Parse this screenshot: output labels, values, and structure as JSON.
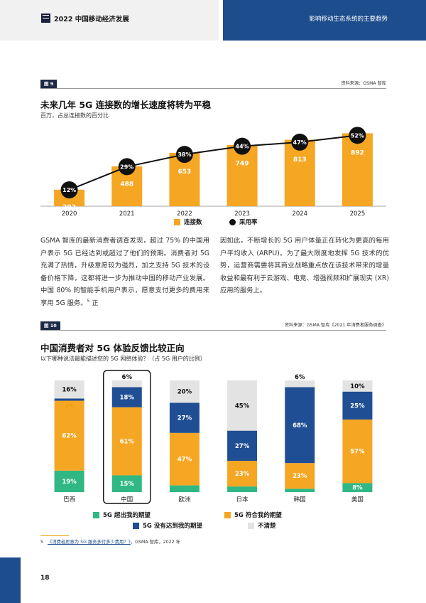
{
  "header": {
    "doc_title": "2022 中国移动经济发展",
    "section_title": "影响移动生态系统的主要趋势"
  },
  "figure9": {
    "label": "图 9",
    "source": "资料来源：GSMA 智库",
    "title": "未来几年 5G 连接数的增长速度将转为平稳",
    "subtitle": "百万，占总连接数的百分比",
    "legend_connections": "连接数",
    "legend_adoption": "采用率",
    "chart_data": {
      "type": "bar",
      "categories": [
        "2020",
        "2021",
        "2022",
        "2023",
        "2024",
        "2025"
      ],
      "series": [
        {
          "name": "连接数",
          "values": [
            202,
            488,
            653,
            749,
            813,
            892
          ],
          "color": "#f5a623"
        },
        {
          "name": "采用率",
          "values": [
            12,
            29,
            38,
            44,
            47,
            52
          ],
          "unit": "%",
          "color": "#111111",
          "type": "line"
        }
      ],
      "ylim": [
        0,
        1000
      ],
      "adoption_ylim": [
        0,
        60
      ],
      "grid": false,
      "legend": "bottom"
    }
  },
  "body": {
    "left": "GSMA 智库的最新消费者调查发现，超过 75% 的中国用户表示 5G 已经达到或超过了他们的预期。消费者对 5G 充满了热情，升级意愿较为强烈，加之支持 5G 技术的设备价格下降，这都将进一步为推动中国的移动产业发展。中国 80% 的智能手机用户表示，愿意支付更多的费用来享用 5G 服务。",
    "left_footnote_ref": "5",
    "left_tail": " 正",
    "right": "因如此，不断增长的 5G 用户体量正在转化为更高的每用户平均收入 (ARPU)。为了最大限度地发挥 5G 技术的优势，运营商需要将其商业战略重点放在该技术带来的增量收益和最有利于云游戏、电竞、增强视频和扩展现实 (XR) 应用的服务上。"
  },
  "figure10": {
    "label": "图 10",
    "source": "资料来源：GSMA 智库《2021 年消费者服务调查》",
    "title": "中国消费者对 5G 体验反馈比较正向",
    "subtitle": "以下哪种说法最能描述您的 5G 网络体验？（占 5G 用户的比例）",
    "legend": {
      "exceeded": "5G 超出我的期望",
      "met": "5G 符合我的期望",
      "below": "5G 没有达到我的期望",
      "unsure": "不清楚"
    },
    "chart_data": {
      "type": "bar",
      "stacked": true,
      "categories": [
        "巴西",
        "中国",
        "欧洲",
        "日本",
        "韩国",
        "美国"
      ],
      "highlight": "中国",
      "series": [
        {
          "name": "5G 超出我的期望",
          "values": [
            19,
            15,
            6,
            5,
            3,
            8
          ],
          "color": "#2fb884"
        },
        {
          "name": "5G 符合我的期望",
          "values": [
            62,
            61,
            47,
            23,
            23,
            57
          ],
          "color": "#f5a623"
        },
        {
          "name": "5G 没有达到我的期望",
          "values": [
            2,
            18,
            27,
            27,
            68,
            25
          ],
          "color": "#1f4e94"
        },
        {
          "name": "不清楚",
          "values": [
            16,
            6,
            20,
            45,
            6,
            10
          ],
          "color": "#e3e3e3"
        }
      ],
      "ylim": [
        0,
        100
      ],
      "unit": "%",
      "legend": "bottom"
    }
  },
  "footnote": {
    "num": "5",
    "link_text": "《消费者愿意为 5G 服务多付多少费用？》",
    "tail": "，GSMA 智库，2022 年"
  },
  "page_number": "18"
}
